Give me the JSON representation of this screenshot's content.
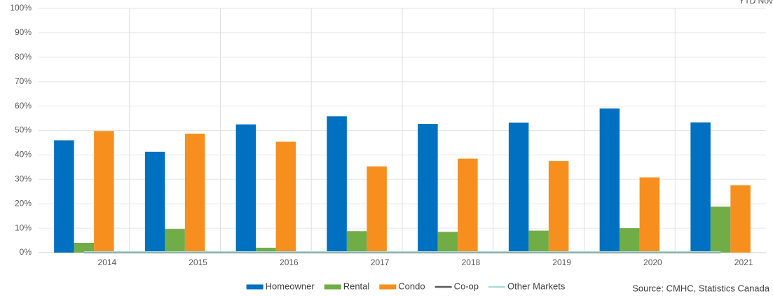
{
  "chart_data": {
    "type": "bar",
    "annotation": "YTD Nov",
    "source": "Source: CMHC, Statistics Canada",
    "categories": [
      "2014",
      "2015",
      "2016",
      "2017",
      "2018",
      "2019",
      "2020",
      "2021"
    ],
    "series": [
      {
        "name": "Homeowner",
        "color": "#0070c0",
        "values": [
          46,
          41.3,
          52.5,
          55.8,
          52.7,
          53.2,
          59,
          53.3
        ]
      },
      {
        "name": "Rental",
        "color": "#70ad47",
        "values": [
          4,
          9.7,
          2,
          8.8,
          8.5,
          9,
          10,
          18.8
        ]
      },
      {
        "name": "Condo",
        "color": "#f78f1e",
        "values": [
          49.8,
          48.7,
          45.4,
          35.3,
          38.5,
          37.5,
          30.8,
          27.6
        ]
      },
      {
        "name": "Co-op",
        "color": "#595959",
        "kind": "line",
        "values": [
          0,
          0,
          0,
          0,
          0,
          0,
          0,
          0
        ]
      },
      {
        "name": "Other Markets",
        "color": "#a9dcd6",
        "kind": "line",
        "values": [
          0.3,
          0.3,
          0.3,
          0.3,
          0.3,
          0.3,
          0.3,
          0.3
        ]
      }
    ],
    "ylim": [
      0,
      100
    ],
    "yticks": [
      {
        "value": 0,
        "label": "0%"
      },
      {
        "value": 10,
        "label": "10%"
      },
      {
        "value": 20,
        "label": "20%"
      },
      {
        "value": 30,
        "label": "30%"
      },
      {
        "value": 40,
        "label": "40%"
      },
      {
        "value": 50,
        "label": "50%"
      },
      {
        "value": 60,
        "label": "60%"
      },
      {
        "value": 70,
        "label": "70%"
      },
      {
        "value": 80,
        "label": "80%"
      },
      {
        "value": 90,
        "label": "90%"
      },
      {
        "value": 100,
        "label": "100%"
      }
    ]
  }
}
